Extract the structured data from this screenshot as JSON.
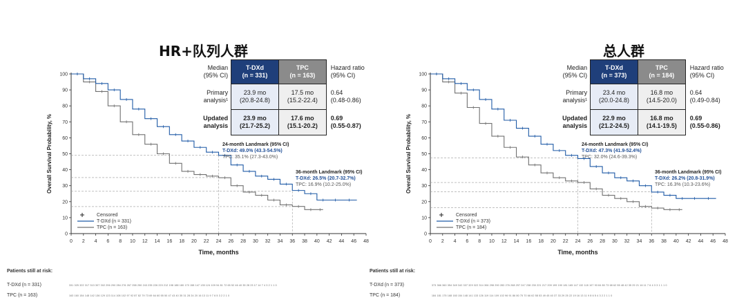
{
  "chart_data": [
    {
      "type": "line",
      "title": "HR+队列人群",
      "xlabel": "Time, months",
      "ylabel": "Overall Survival Probability, %",
      "xlim": [
        0,
        48
      ],
      "ylim": [
        0,
        100
      ],
      "xticks": [
        "0",
        "2",
        "4",
        "6",
        "8",
        "10",
        "12",
        "14",
        "16",
        "18",
        "20",
        "22",
        "24",
        "26",
        "28",
        "30",
        "32",
        "34",
        "36",
        "38",
        "40",
        "42",
        "44",
        "46",
        "48"
      ],
      "yticks": [
        "0",
        "10",
        "20",
        "30",
        "40",
        "50",
        "60",
        "70",
        "80",
        "90",
        "100"
      ],
      "legend": {
        "censored": "Censored",
        "tdxd": "T-DXd (n = 331)",
        "tpc": "TPC (n = 163)"
      },
      "series": [
        {
          "name": "T-DXd",
          "color": "#1f5aa6",
          "x": [
            0,
            2,
            4,
            6,
            8,
            10,
            12,
            14,
            16,
            18,
            20,
            22,
            24,
            26,
            28,
            30,
            32,
            34,
            36,
            38,
            40,
            42,
            44,
            46.5
          ],
          "y": [
            100,
            97,
            94,
            90,
            84,
            78,
            72,
            67,
            62,
            58,
            54,
            51,
            49,
            43,
            39,
            36,
            34,
            31,
            27,
            25,
            21,
            21,
            21,
            21
          ]
        },
        {
          "name": "TPC",
          "color": "#707070",
          "x": [
            0,
            2,
            4,
            6,
            8,
            10,
            12,
            14,
            16,
            18,
            20,
            22,
            24,
            26,
            28,
            30,
            32,
            34,
            36,
            38,
            40,
            41
          ],
          "y": [
            100,
            95,
            89,
            80,
            70,
            62,
            56,
            50,
            44,
            39,
            37,
            36,
            35,
            30,
            26,
            24,
            21,
            18,
            17,
            15,
            15,
            15
          ]
        }
      ],
      "landmark_lines": [
        {
          "month": 24,
          "tdxd": 49.0,
          "tpc": 35.1
        },
        {
          "month": 36,
          "tdxd": 26.5,
          "tpc": 16.9
        }
      ],
      "table": {
        "col_tdxd": "T-DXd",
        "col_tdxd_n": "(n = 331)",
        "col_tpc": "TPC",
        "col_tpc_n": "(n = 163)",
        "median_label": "Median",
        "ci_label": "(95% CI)",
        "hr_label": "Hazard ratio",
        "hr_ci_label": "(95% CI)",
        "rows": [
          {
            "label1": "Primary",
            "label2": "analysis¹",
            "tdxd1": "23.9 mo",
            "tdxd2": "(20.8-24.8)",
            "tpc1": "17.5 mo",
            "tpc2": "(15.2-22.4)",
            "hr1": "0.64",
            "hr2": "(0.48-0.86)"
          },
          {
            "label1": "Updated",
            "label2": "analysis",
            "tdxd1": "23.9 mo",
            "tdxd2": "(21.7-25.2)",
            "tpc1": "17.6 mo",
            "tpc2": "(15.1-20.2)",
            "hr1": "0.69",
            "hr2": "(0.55-0.87)"
          }
        ]
      },
      "landmark24": {
        "title": "24-month Landmark (95% CI)",
        "tdxd": "T-DXd: 49.0% (43.3-54.5%)",
        "tpc": "TPC: 35.1% (27.3-43.0%)"
      },
      "landmark36": {
        "title": "36-month Landmark (95% CI)",
        "tdxd": "T-DXd: 26.5% (20.7-32.7%)",
        "tpc": "TPC: 16.9% (10.2-25.0%)"
      },
      "risk": {
        "label": "Patients still at risk:",
        "tdxd_label": "T-DXd (n = 331)",
        "tpc_label": "TPC (n = 163)",
        "tdxd_nums": "331 325 322 317 313 307 302 296 290 284 276 267 258 250 243 235 226 220 212 198 188 180 170 158 147 135 124 109 94 81 72 65 52 46 40 35 28 23 17 14 7 4 3 2 1 1 0",
        "tpc_nums": "163 160 154 148 142 136 129 123 114 108 102 97 92 87 82 79 73 69 64 60 55 50 47 43 40 35 31 28 24 20 16 13 11 9 7 6 5 3 2 2 1 0"
      }
    },
    {
      "type": "line",
      "title": "总人群",
      "xlabel": "Time, months",
      "ylabel": "Overall Survival Probability, %",
      "xlim": [
        0,
        48
      ],
      "ylim": [
        0,
        100
      ],
      "xticks": [
        "0",
        "2",
        "4",
        "6",
        "8",
        "10",
        "12",
        "14",
        "16",
        "18",
        "20",
        "22",
        "24",
        "26",
        "28",
        "30",
        "32",
        "34",
        "36",
        "38",
        "40",
        "42",
        "44",
        "46",
        "48"
      ],
      "yticks": [
        "0",
        "10",
        "20",
        "30",
        "40",
        "50",
        "60",
        "70",
        "80",
        "90",
        "100"
      ],
      "legend": {
        "censored": "Censored",
        "tdxd": "T-DXd (n = 373)",
        "tpc": "TPC (n = 184)"
      },
      "series": [
        {
          "name": "T-DXd",
          "color": "#1f5aa6",
          "x": [
            0,
            2,
            4,
            6,
            8,
            10,
            12,
            14,
            16,
            18,
            20,
            22,
            24,
            26,
            28,
            30,
            32,
            34,
            36,
            38,
            40,
            42,
            44,
            46.5
          ],
          "y": [
            100,
            97,
            94,
            90,
            84,
            78,
            71,
            66,
            61,
            56,
            52,
            49,
            47,
            42,
            38,
            35,
            33,
            30,
            26,
            24,
            22,
            22,
            22,
            22
          ]
        },
        {
          "name": "TPC",
          "color": "#707070",
          "x": [
            0,
            2,
            4,
            6,
            8,
            10,
            12,
            14,
            16,
            18,
            20,
            22,
            24,
            26,
            28,
            30,
            32,
            34,
            36,
            38,
            40,
            41
          ],
          "y": [
            100,
            95,
            88,
            79,
            69,
            61,
            54,
            48,
            43,
            38,
            35,
            33,
            32,
            28,
            24,
            22,
            20,
            17,
            16,
            15,
            15,
            15
          ]
        }
      ],
      "landmark_lines": [
        {
          "month": 24,
          "tdxd": 47.3,
          "tpc": 32.0
        },
        {
          "month": 36,
          "tdxd": 26.2,
          "tpc": 16.3
        }
      ],
      "table": {
        "col_tdxd": "T-DXd",
        "col_tdxd_n": "(n = 373)",
        "col_tpc": "TPC",
        "col_tpc_n": "(n = 184)",
        "median_label": "Median",
        "ci_label": "(95% CI)",
        "hr_label": "Hazard ratio",
        "hr_ci_label": "(95% CI)",
        "rows": [
          {
            "label1": "Primary",
            "label2": "analysis¹",
            "tdxd1": "23.4 mo",
            "tdxd2": "(20.0-24.8)",
            "tpc1": "16.8 mo",
            "tpc2": "(14.5-20.0)",
            "hr1": "0.64",
            "hr2": "(0.49-0.84)"
          },
          {
            "label1": "Updated",
            "label2": "analysis",
            "tdxd1": "22.9 mo",
            "tdxd2": "(21.2-24.5)",
            "tpc1": "16.8 mo",
            "tpc2": "(14.1-19.5)",
            "hr1": "0.69",
            "hr2": "(0.55-0.86)"
          }
        ]
      },
      "landmark24": {
        "title": "24-month Landmark (95% CI)",
        "tdxd": "T-DXd: 47.3% (41.9-52.4%)",
        "tpc": "TPC: 32.0% (24.6-39.3%)"
      },
      "landmark36": {
        "title": "36-month Landmark (95% CI)",
        "tdxd": "T-DXd: 26.2% (20.8-31.9%)",
        "tpc": "TPC: 16.3% (10.3-23.6%)"
      },
      "risk": {
        "label": "Patients still at risk:",
        "tdxd_label": "T-DXd (n = 373)",
        "tpc_label": "TPC (n = 184)",
        "tdxd_nums": "373 366 360 354 349 342 337 329 322 314 306 298 290 283 276 268 257 247 238 230 221 217 209 199 190 181 165 147 132 118 107 93 84 80 73 68 62 55 48 42 35 29 21 16 11 7 6 4 3 3 1 1 1 0",
        "tpc_nums": "184 181 175 168 160 154 148 141 133 126 119 114 109 102 96 91 86 80 75 70 66 62 58 53 49 45 40 37 33 29 25 22 19 16 13 11 9 8 6 5 4 3 2 2 1 1 0"
      }
    }
  ]
}
